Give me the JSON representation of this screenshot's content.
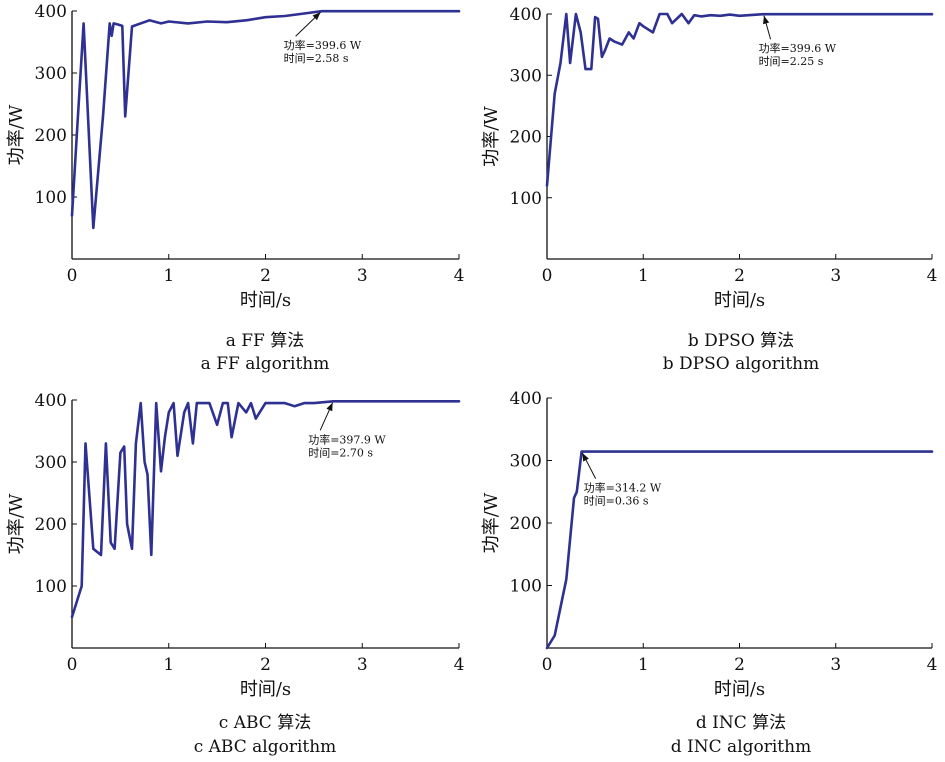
{
  "chart_data": [
    {
      "type": "line",
      "xlabel": "时间/s",
      "ylabel": "功率/W",
      "xlim": [
        0,
        4
      ],
      "ylim": [
        0,
        400
      ],
      "xticks": [
        "0",
        "1",
        "2",
        "3",
        "4"
      ],
      "yticks": [
        "100",
        "200",
        "300",
        "400"
      ],
      "line_color": "#2e3192",
      "grid": false,
      "caption_cn": "a  FF 算法",
      "caption_en": "a  FF algorithm",
      "annotation": {
        "line1": "功率=399.6 W",
        "line2": "时间=2.58 s",
        "x": 2.58,
        "y": 399.6
      },
      "series": [
        {
          "x": [
            0.0,
            0.05,
            0.12,
            0.22,
            0.32,
            0.39,
            0.41,
            0.43,
            0.48,
            0.52,
            0.55,
            0.62,
            0.8,
            0.92,
            1.0,
            1.2,
            1.4,
            1.6,
            1.8,
            2.0,
            2.2,
            2.4,
            2.58,
            3.0,
            4.0
          ],
          "y": [
            70,
            200,
            380,
            50,
            230,
            380,
            360,
            380,
            378,
            376,
            230,
            375,
            385,
            380,
            383,
            380,
            383,
            382,
            385,
            390,
            392,
            396,
            399.6,
            399.6,
            399.6
          ]
        }
      ]
    },
    {
      "type": "line",
      "xlabel": "时间/s",
      "ylabel": "功率/W",
      "xlim": [
        0,
        4
      ],
      "ylim": [
        0,
        400
      ],
      "xticks": [
        "0",
        "1",
        "2",
        "3",
        "4"
      ],
      "yticks": [
        "100",
        "200",
        "300",
        "400"
      ],
      "line_color": "#2e3192",
      "grid": false,
      "caption_cn": "b  DPSO 算法",
      "caption_en": "b  DPSO algorithm",
      "annotation": {
        "line1": "功率=399.6 W",
        "line2": "时间=2.25 s",
        "x": 2.25,
        "y": 399.6
      },
      "series": [
        {
          "x": [
            0.0,
            0.08,
            0.14,
            0.2,
            0.24,
            0.3,
            0.35,
            0.4,
            0.46,
            0.5,
            0.53,
            0.57,
            0.6,
            0.65,
            0.7,
            0.78,
            0.85,
            0.9,
            0.96,
            1.0,
            1.1,
            1.17,
            1.25,
            1.3,
            1.4,
            1.47,
            1.53,
            1.6,
            1.7,
            1.8,
            1.9,
            2.0,
            2.25,
            3.0,
            4.0
          ],
          "y": [
            120,
            270,
            320,
            400,
            320,
            400,
            370,
            310,
            310,
            395,
            392,
            330,
            340,
            360,
            355,
            350,
            370,
            360,
            385,
            380,
            370,
            400,
            400,
            385,
            400,
            385,
            398,
            396,
            398,
            397,
            399,
            397,
            399.6,
            399.6,
            399.6
          ]
        }
      ]
    },
    {
      "type": "line",
      "xlabel": "时间/s",
      "ylabel": "功率/W",
      "xlim": [
        0,
        4
      ],
      "ylim": [
        0,
        400
      ],
      "xticks": [
        "0",
        "1",
        "2",
        "3",
        "4"
      ],
      "yticks": [
        "100",
        "200",
        "300",
        "400"
      ],
      "line_color": "#2e3192",
      "grid": false,
      "caption_cn": "c  ABC 算法",
      "caption_en": "c  ABC algorithm",
      "annotation": {
        "line1": "功率=397.9 W",
        "line2": "时间=2.70 s",
        "x": 2.7,
        "y": 397.9
      },
      "series": [
        {
          "x": [
            0.0,
            0.1,
            0.14,
            0.22,
            0.3,
            0.35,
            0.4,
            0.44,
            0.5,
            0.54,
            0.57,
            0.62,
            0.66,
            0.71,
            0.75,
            0.78,
            0.82,
            0.87,
            0.92,
            0.96,
            1.0,
            1.05,
            1.09,
            1.12,
            1.16,
            1.2,
            1.25,
            1.29,
            1.32,
            1.35,
            1.42,
            1.5,
            1.56,
            1.61,
            1.65,
            1.72,
            1.8,
            1.85,
            1.9,
            2.0,
            2.1,
            2.2,
            2.3,
            2.4,
            2.5,
            2.7,
            3.0,
            4.0
          ],
          "y": [
            50,
            100,
            330,
            160,
            150,
            330,
            170,
            160,
            315,
            325,
            200,
            160,
            330,
            395,
            300,
            280,
            150,
            395,
            285,
            340,
            380,
            395,
            310,
            340,
            380,
            395,
            330,
            395,
            395,
            395,
            395,
            360,
            395,
            395,
            340,
            395,
            380,
            395,
            370,
            395,
            395,
            395,
            390,
            395,
            395,
            397.9,
            397.9,
            397.9
          ]
        }
      ]
    },
    {
      "type": "line",
      "xlabel": "时间/s",
      "ylabel": "功率/W",
      "xlim": [
        0,
        4
      ],
      "ylim": [
        0,
        400
      ],
      "xticks": [
        "0",
        "1",
        "2",
        "3",
        "4"
      ],
      "yticks": [
        "100",
        "200",
        "300",
        "400"
      ],
      "line_color": "#2e3192",
      "grid": false,
      "caption_cn": "d  INC 算法",
      "caption_en": "d  INC algorithm",
      "annotation": {
        "line1": "功率=314.2 W",
        "line2": "时间=0.36 s",
        "x": 0.36,
        "y": 314.2
      },
      "series": [
        {
          "x": [
            0.0,
            0.08,
            0.2,
            0.28,
            0.31,
            0.36,
            1.0,
            2.0,
            3.0,
            4.0
          ],
          "y": [
            0,
            20,
            110,
            240,
            250,
            314.2,
            314.2,
            314.2,
            314.2,
            314.2
          ]
        }
      ]
    }
  ]
}
